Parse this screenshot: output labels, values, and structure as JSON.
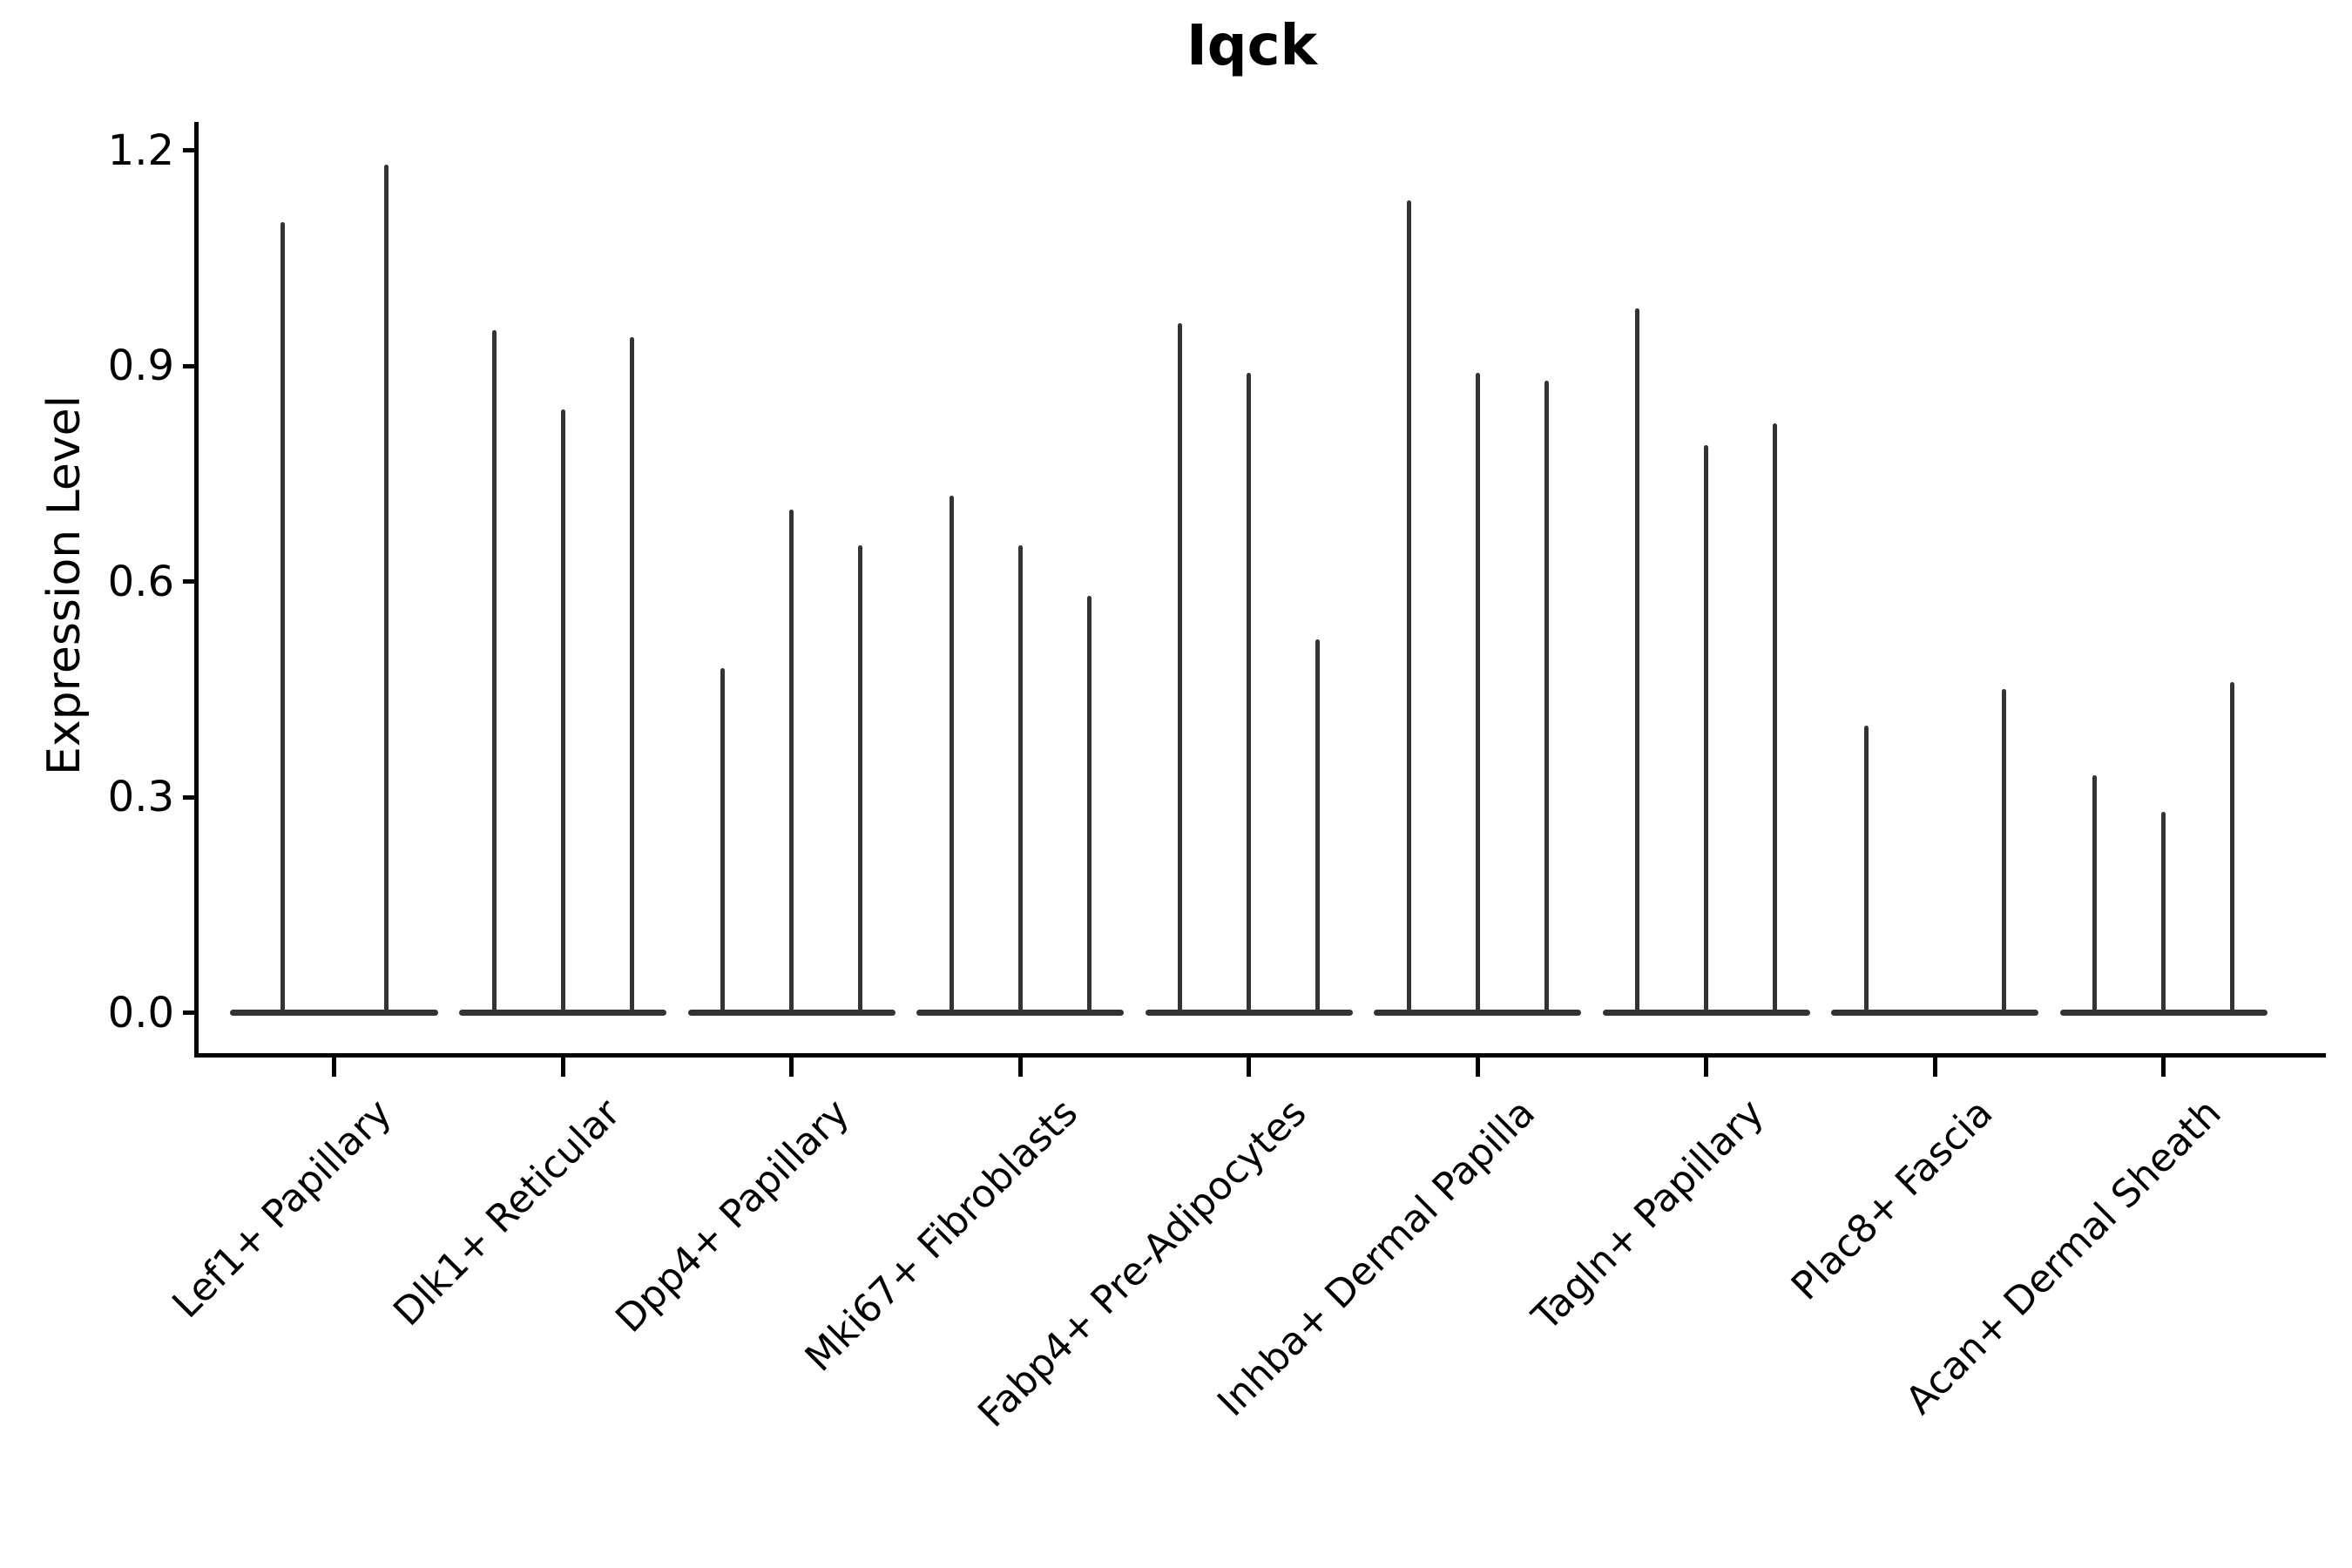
{
  "title": "Iqck",
  "y_axis": {
    "label": "Expression Level",
    "tick_labels": [
      "1.2",
      "0.9",
      "0.6",
      "0.3",
      "0.0"
    ],
    "tick_values": [
      1.2,
      0.9,
      0.6,
      0.3,
      0.0
    ]
  },
  "colors": {
    "violin_line": "#333333",
    "axis": "#000000",
    "text": "#000000",
    "background": "#ffffff"
  },
  "chart_data": {
    "type": "violin",
    "title": "Iqck",
    "xlabel": "",
    "ylabel": "Expression Level",
    "ylim": [
      0,
      1.24
    ],
    "yticks": [
      0.0,
      0.3,
      0.6,
      0.9,
      1.2
    ],
    "grid": false,
    "legend_position": "none",
    "categories": [
      "Lef1+ Papillary",
      "Dlk1+ Reticular",
      "Dpp4+ Papillary",
      "Mki67+ Fibroblasts",
      "Fabp4+ Pre-Adipocytes",
      "Inhba+ Dermal Papilla",
      "Tagln+ Papillary",
      "Plac8+ Fascia",
      "Acan+ Dermal Sheath"
    ],
    "series": [
      {
        "category": "Lef1+ Papillary",
        "violin_peak_values": [
          1.1,
          1.18
        ]
      },
      {
        "category": "Dlk1+ Reticular",
        "violin_peak_values": [
          0.95,
          0.84,
          0.94
        ]
      },
      {
        "category": "Dpp4+ Papillary",
        "violin_peak_values": [
          0.48,
          0.7,
          0.65
        ]
      },
      {
        "category": "Mki67+ Fibroblasts",
        "violin_peak_values": [
          0.72,
          0.65,
          0.58
        ]
      },
      {
        "category": "Fabp4+ Pre-Adipocytes",
        "violin_peak_values": [
          0.96,
          0.89,
          0.52
        ]
      },
      {
        "category": "Inhba+ Dermal Papilla",
        "violin_peak_values": [
          1.13,
          0.89,
          0.88
        ]
      },
      {
        "category": "Tagln+ Papillary",
        "violin_peak_values": [
          0.98,
          0.79,
          0.82
        ]
      },
      {
        "category": "Plac8+ Fascia",
        "violin_peak_values": [
          0.4,
          0.0,
          0.45
        ]
      },
      {
        "category": "Acan+ Dermal Sheath",
        "violin_peak_values": [
          0.33,
          0.28,
          0.46
        ]
      }
    ],
    "description": "All violins are extremely narrow (near-zero density except at 0), rendered as thin vertical spikes rising from a flat body at expression level 0."
  }
}
